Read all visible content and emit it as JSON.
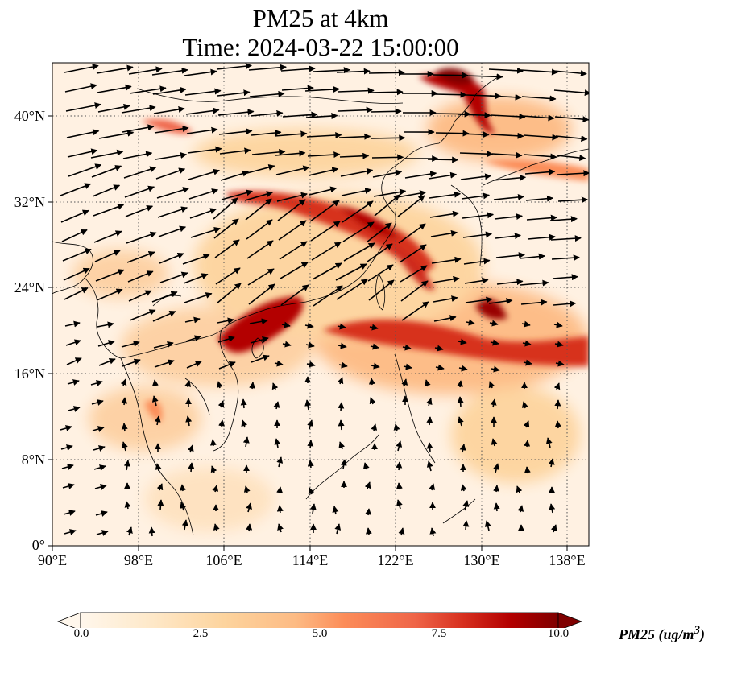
{
  "title_line1": "PM25 at 4km",
  "title_line2": "Time: 2024-03-22 15:00:00",
  "colors": {
    "low": "#fff5eb",
    "mid": "#fd8d3c",
    "high": "#7f0000",
    "coast": "#000000",
    "grid": "#555555",
    "arrow": "#000000"
  },
  "map": {
    "lon_range": [
      90,
      140
    ],
    "lat_range": [
      0,
      45
    ],
    "lon_ticks": [
      "90°E",
      "98°E",
      "106°E",
      "114°E",
      "122°E",
      "130°E",
      "138°E"
    ],
    "lat_ticks": [
      "0°",
      "8°N",
      "16°N",
      "24°N",
      "32°N",
      "40°N"
    ],
    "gridlines": "dotted"
  },
  "colorbar": {
    "label": "PM25 (ug/m",
    "label_sup": "3",
    "label_end": ")",
    "ticks": [
      "0.0",
      "2.5",
      "5.0",
      "7.5",
      "10.0"
    ],
    "min": 0,
    "max": 10,
    "extend": "both",
    "cmap": "OrRd"
  }
}
